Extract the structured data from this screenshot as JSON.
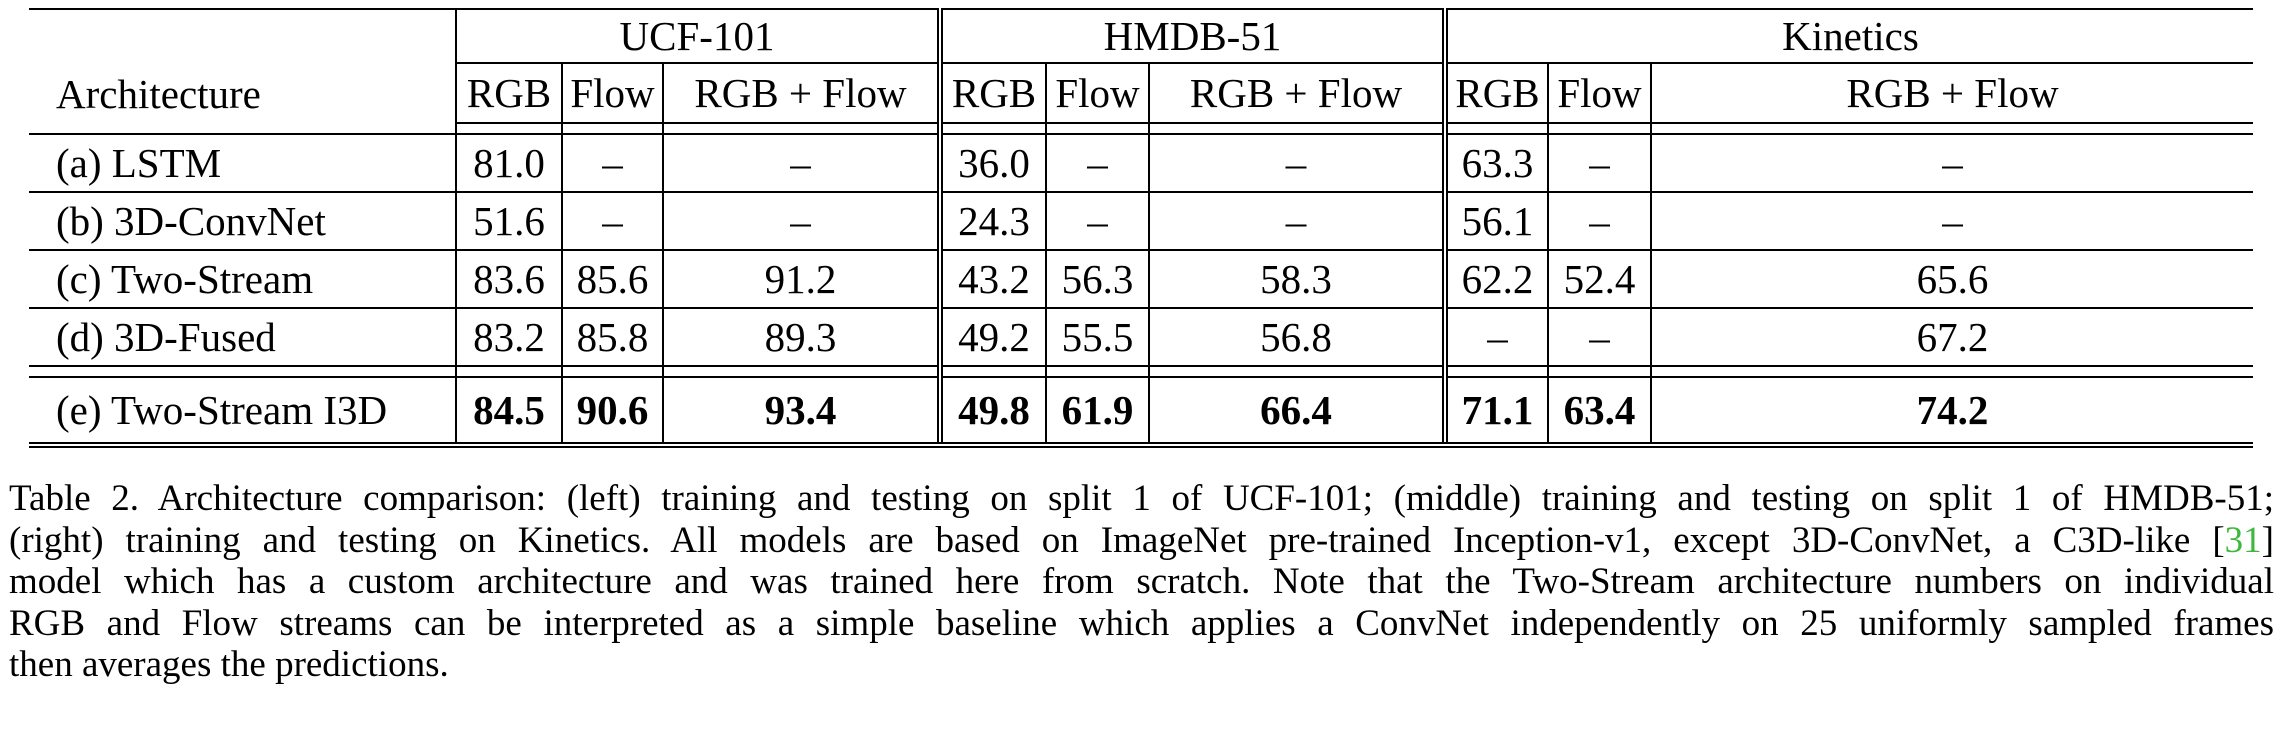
{
  "table": {
    "arch_header": "Architecture",
    "datasets": [
      "UCF-101",
      "HMDB-51",
      "Kinetics"
    ],
    "sub_headers": [
      "RGB",
      "Flow",
      "RGB + Flow"
    ],
    "rows": [
      {
        "arch": "(a) LSTM",
        "values": [
          "81.0",
          "–",
          "–",
          "36.0",
          "–",
          "–",
          "63.3",
          "–",
          "–"
        ]
      },
      {
        "arch": "(b) 3D-ConvNet",
        "values": [
          "51.6",
          "–",
          "–",
          "24.3",
          "–",
          "–",
          "56.1",
          "–",
          "–"
        ]
      },
      {
        "arch": "(c) Two-Stream",
        "values": [
          "83.6",
          "85.6",
          "91.2",
          "43.2",
          "56.3",
          "58.3",
          "62.2",
          "52.4",
          "65.6"
        ]
      },
      {
        "arch": "(d) 3D-Fused",
        "values": [
          "83.2",
          "85.8",
          "89.3",
          "49.2",
          "55.5",
          "56.8",
          "–",
          "–",
          "67.2"
        ]
      },
      {
        "arch": "(e) Two-Stream I3D",
        "values": [
          "84.5",
          "90.6",
          "93.4",
          "49.8",
          "61.9",
          "66.4",
          "71.1",
          "63.4",
          "74.2"
        ],
        "bold": true
      }
    ]
  },
  "caption": {
    "line1": "Table 2. Architecture comparison: (left) training and testing on split 1 of UCF-101; (middle) training and testing on split 1 of HMDB-51;",
    "line2": "(right) training and testing on Kinetics. All models are based on ImageNet pre-trained Inception-v1, except 3D-ConvNet, a C3D-like [",
    "cite": "31",
    "line3_end": "]",
    "line3": "model which has a custom architecture and was trained here from scratch. Note that the Two-Stream architecture numbers on individual",
    "line4": "RGB and Flow streams can be interpreted as a simple baseline which applies a ConvNet independently on 25 uniformly sampled frames",
    "line5": "then averages the predictions."
  }
}
